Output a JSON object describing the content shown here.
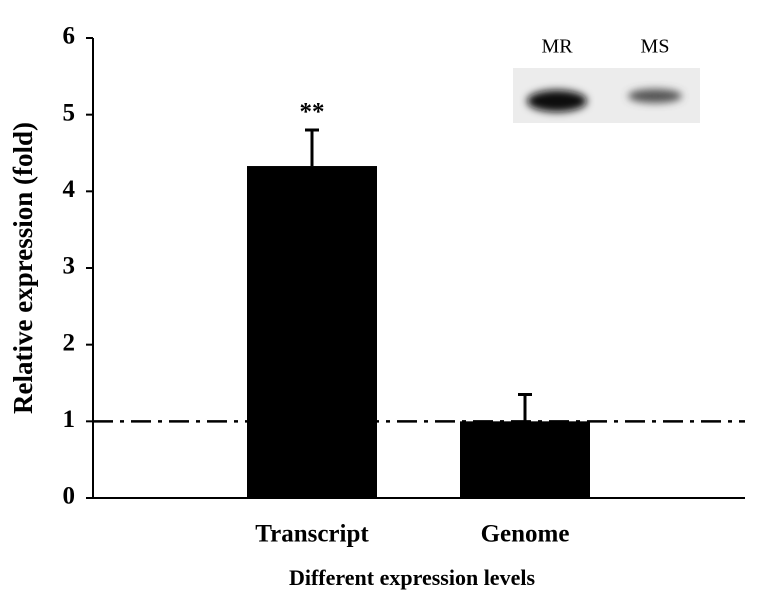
{
  "chart_data": {
    "type": "bar",
    "y_label": "Relative expression (fold)",
    "x_label": "Different expression levels",
    "categories": [
      "Transcript",
      "Genome"
    ],
    "values": [
      4.33,
      1.0
    ],
    "errors": [
      0.47,
      0.35
    ],
    "color": "#000000",
    "annotations": [
      "**",
      null
    ],
    "reference_line": 1,
    "inset_labels": [
      "MR",
      "MS"
    ],
    "ylim": [
      0,
      6
    ],
    "yticks": [
      0,
      1,
      2,
      3,
      4,
      5,
      6
    ],
    "grid": false
  }
}
